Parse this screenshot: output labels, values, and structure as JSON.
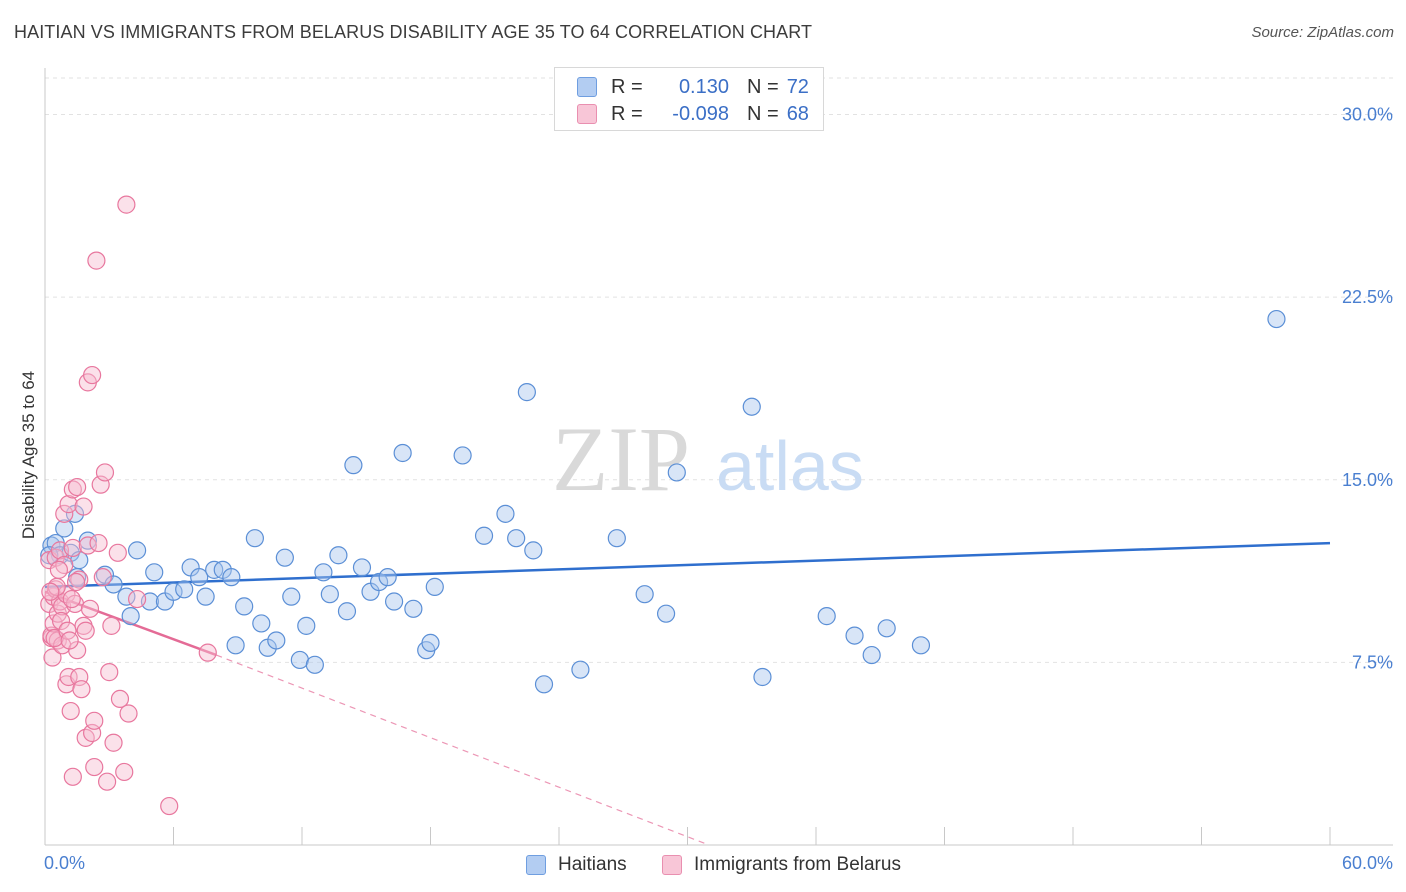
{
  "title": "HAITIAN VS IMMIGRANTS FROM BELARUS DISABILITY AGE 35 TO 64 CORRELATION CHART",
  "source": "Source: ZipAtlas.com",
  "watermark": {
    "zip": "ZIP",
    "atlas": "atlas"
  },
  "legend_top": {
    "rows": [
      {
        "r_label": "R =",
        "r_value": "0.130",
        "n_label": "N =",
        "n_value": "72"
      },
      {
        "r_label": "R =",
        "r_value": "-0.098",
        "n_label": "N =",
        "n_value": "68"
      }
    ]
  },
  "legend_bottom": [
    "Haitians",
    "Immigrants from Belarus"
  ],
  "chart_data": {
    "type": "scatter",
    "title": "HAITIAN VS IMMIGRANTS FROM BELARUS DISABILITY AGE 35 TO 64 CORRELATION CHART",
    "xlabel": "",
    "ylabel": "Disability Age 35 to 64",
    "xlim": [
      0,
      60
    ],
    "ylim": [
      0,
      31.5
    ],
    "x_tick_labels": [
      "0.0%",
      "60.0%"
    ],
    "y_ticks": [
      7.5,
      15.0,
      22.5,
      30.0
    ],
    "y_tick_labels": [
      "7.5%",
      "15.0%",
      "22.5%",
      "30.0%"
    ],
    "grid": true,
    "colors": {
      "haitians": "#5b8fd6",
      "haitians_fill": "#a9c6ee",
      "belarus": "#e8779e",
      "belarus_fill": "#f6bcd0",
      "trend_blue": "#2f6fce",
      "trend_pink": "#e46b96"
    },
    "series": [
      {
        "name": "Haitians",
        "r": 0.13,
        "n": 72,
        "trend": {
          "x": [
            0,
            60
          ],
          "y": [
            10.6,
            12.4
          ]
        },
        "points": [
          [
            0.3,
            12.3
          ],
          [
            0.5,
            12.4
          ],
          [
            0.7,
            11.9
          ],
          [
            0.9,
            13.0
          ],
          [
            1.2,
            12.0
          ],
          [
            1.4,
            13.6
          ],
          [
            1.6,
            11.7
          ],
          [
            2.0,
            12.5
          ],
          [
            1.5,
            11.0
          ],
          [
            2.8,
            11.1
          ],
          [
            3.2,
            10.7
          ],
          [
            3.8,
            10.2
          ],
          [
            4.0,
            9.4
          ],
          [
            4.3,
            12.1
          ],
          [
            4.9,
            10.0
          ],
          [
            5.1,
            11.2
          ],
          [
            5.6,
            10.0
          ],
          [
            6.0,
            10.4
          ],
          [
            6.5,
            10.5
          ],
          [
            6.8,
            11.4
          ],
          [
            7.2,
            11.0
          ],
          [
            7.5,
            10.2
          ],
          [
            7.9,
            11.3
          ],
          [
            8.3,
            11.3
          ],
          [
            8.7,
            11.0
          ],
          [
            8.9,
            8.2
          ],
          [
            9.3,
            9.8
          ],
          [
            9.8,
            12.6
          ],
          [
            10.1,
            9.1
          ],
          [
            10.4,
            8.1
          ],
          [
            10.8,
            8.4
          ],
          [
            11.2,
            11.8
          ],
          [
            11.5,
            10.2
          ],
          [
            11.9,
            7.6
          ],
          [
            12.2,
            9.0
          ],
          [
            12.6,
            7.4
          ],
          [
            13.0,
            11.2
          ],
          [
            13.3,
            10.3
          ],
          [
            13.7,
            11.9
          ],
          [
            14.1,
            9.6
          ],
          [
            14.4,
            15.6
          ],
          [
            14.8,
            11.4
          ],
          [
            15.2,
            10.4
          ],
          [
            15.6,
            10.8
          ],
          [
            16.0,
            11.0
          ],
          [
            16.3,
            10.0
          ],
          [
            16.7,
            16.1
          ],
          [
            17.2,
            9.7
          ],
          [
            17.8,
            8.0
          ],
          [
            18.0,
            8.3
          ],
          [
            18.2,
            10.6
          ],
          [
            19.5,
            16.0
          ],
          [
            20.5,
            12.7
          ],
          [
            21.5,
            13.6
          ],
          [
            22.0,
            12.6
          ],
          [
            22.5,
            18.6
          ],
          [
            22.8,
            12.1
          ],
          [
            23.3,
            6.6
          ],
          [
            25.0,
            7.2
          ],
          [
            26.7,
            12.6
          ],
          [
            28.0,
            10.3
          ],
          [
            29.0,
            9.5
          ],
          [
            29.5,
            15.3
          ],
          [
            33.0,
            18.0
          ],
          [
            33.5,
            6.9
          ],
          [
            36.5,
            9.4
          ],
          [
            37.8,
            8.6
          ],
          [
            38.6,
            7.8
          ],
          [
            39.3,
            8.9
          ],
          [
            40.9,
            8.2
          ],
          [
            57.5,
            21.6
          ],
          [
            0.2,
            11.9
          ]
        ]
      },
      {
        "name": "Immigrants from Belarus",
        "r": -0.098,
        "n": 68,
        "trend": {
          "x": [
            0,
            8
          ],
          "y": [
            10.4,
            7.8
          ]
        },
        "trend_extended": {
          "x": [
            8,
            31
          ],
          "y": [
            7.8,
            0
          ]
        },
        "points": [
          [
            0.2,
            11.7
          ],
          [
            0.2,
            9.9
          ],
          [
            0.3,
            8.5
          ],
          [
            0.3,
            8.6
          ],
          [
            0.35,
            7.7
          ],
          [
            0.4,
            10.2
          ],
          [
            0.4,
            9.1
          ],
          [
            0.5,
            11.8
          ],
          [
            0.5,
            10.5
          ],
          [
            0.6,
            9.5
          ],
          [
            0.6,
            8.4
          ],
          [
            0.7,
            12.1
          ],
          [
            0.7,
            10.0
          ],
          [
            0.8,
            9.8
          ],
          [
            0.8,
            8.2
          ],
          [
            0.9,
            13.6
          ],
          [
            0.9,
            11.5
          ],
          [
            1.0,
            10.3
          ],
          [
            1.0,
            6.6
          ],
          [
            1.1,
            14.0
          ],
          [
            1.1,
            6.9
          ],
          [
            1.2,
            5.5
          ],
          [
            1.3,
            14.6
          ],
          [
            1.3,
            12.2
          ],
          [
            1.3,
            2.8
          ],
          [
            1.4,
            9.9
          ],
          [
            1.5,
            14.7
          ],
          [
            1.5,
            8.0
          ],
          [
            1.6,
            10.9
          ],
          [
            1.6,
            6.9
          ],
          [
            1.7,
            6.4
          ],
          [
            1.8,
            13.9
          ],
          [
            1.8,
            9.0
          ],
          [
            1.9,
            8.8
          ],
          [
            1.9,
            4.4
          ],
          [
            2.0,
            19.0
          ],
          [
            2.0,
            12.3
          ],
          [
            2.1,
            9.7
          ],
          [
            2.2,
            19.3
          ],
          [
            2.2,
            4.6
          ],
          [
            2.3,
            5.1
          ],
          [
            2.3,
            3.2
          ],
          [
            2.4,
            24.0
          ],
          [
            2.5,
            12.4
          ],
          [
            2.6,
            14.8
          ],
          [
            2.7,
            11.0
          ],
          [
            2.8,
            15.3
          ],
          [
            2.9,
            2.6
          ],
          [
            3.0,
            7.1
          ],
          [
            3.1,
            9.0
          ],
          [
            3.2,
            4.2
          ],
          [
            3.4,
            12.0
          ],
          [
            3.5,
            6.0
          ],
          [
            3.7,
            3.0
          ],
          [
            3.9,
            5.4
          ],
          [
            3.8,
            26.3
          ],
          [
            4.3,
            10.1
          ],
          [
            5.8,
            1.6
          ],
          [
            7.6,
            7.9
          ],
          [
            0.45,
            8.5
          ],
          [
            0.55,
            10.6
          ],
          [
            0.65,
            11.3
          ],
          [
            0.75,
            9.2
          ],
          [
            1.05,
            8.8
          ],
          [
            1.15,
            8.4
          ],
          [
            1.25,
            10.1
          ],
          [
            1.45,
            10.8
          ],
          [
            0.25,
            10.4
          ]
        ]
      }
    ]
  }
}
